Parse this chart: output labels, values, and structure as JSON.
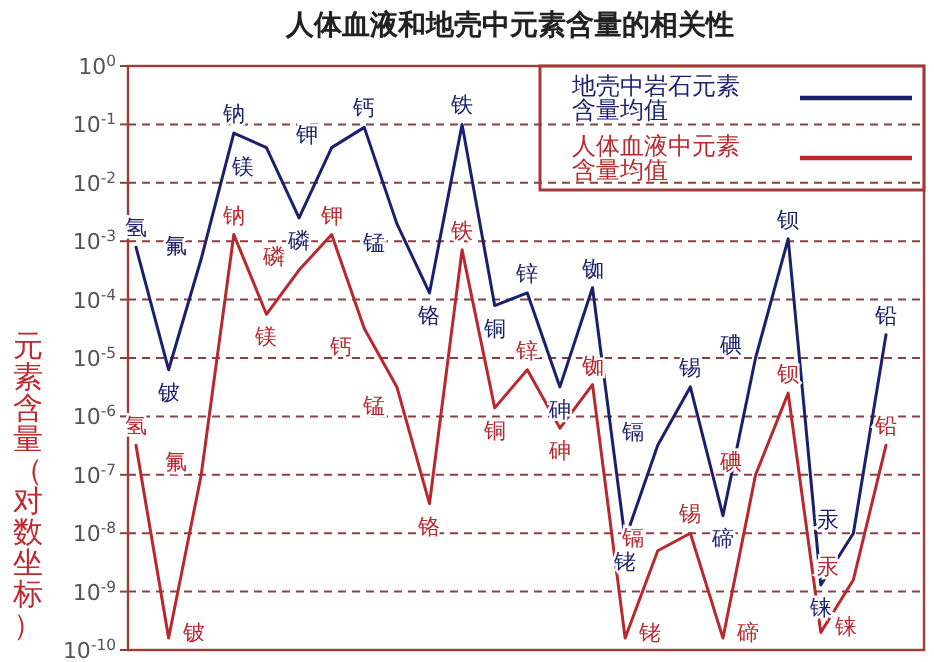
{
  "chart_data": {
    "type": "line",
    "title": "人体血液和地壳中元素含量的相关性",
    "ylabel": "元素含量（对数坐标）",
    "categories": [
      null,
      null,
      null,
      null,
      null,
      null,
      null,
      null,
      null,
      null,
      null,
      null,
      null,
      null,
      null,
      null,
      null,
      null,
      null,
      null,
      null,
      null,
      null,
      null
    ],
    "series": [
      {
        "name": "地壳中岩石元素含量均值",
        "color": "#1c1f6b",
        "values": [
          0.00079,
          6.3e-06,
          0.0005,
          0.071,
          0.04,
          0.0025,
          0.04,
          0.089,
          0.002,
          0.00013,
          0.1,
          7.9e-05,
          0.00013,
          3.2e-06,
          0.00016,
          7.9e-09,
          3.2e-07,
          3.2e-06,
          2e-08,
          1e-05,
          0.0011,
          1.3e-09,
          1e-08,
          2.5e-05
        ],
        "value_labels": [
          "氢",
          "铍",
          "氟",
          "钠",
          "镁",
          "磷",
          "钾",
          "钙",
          "锰",
          "铬",
          "铁",
          "铜",
          "锌",
          "砷",
          "铷",
          "铑",
          "镉",
          "锡",
          "碲",
          "碘",
          "钡",
          "铼",
          "汞",
          "铅"
        ]
      },
      {
        "name": "人体血液中元素含量均值",
        "color": "#b8282e",
        "values": [
          3.2e-07,
          1.6e-10,
          1e-07,
          0.0013,
          5.6e-05,
          0.00032,
          0.0013,
          3.2e-05,
          3.2e-06,
          3.2e-08,
          0.00071,
          1.4e-06,
          6.3e-06,
          6.3e-07,
          3.5e-06,
          1.6e-10,
          5e-09,
          1e-08,
          1.6e-10,
          1e-07,
          2.5e-06,
          2e-10,
          1.6e-09,
          3.2e-07
        ],
        "value_labels": [
          "氢",
          "铍",
          "氟",
          "钠",
          "镁",
          "磷",
          "钾",
          "钙",
          "锰",
          "铬",
          "铁",
          "铜",
          "锌",
          "砷",
          "铷",
          "铑",
          "镉",
          "锡",
          "碲",
          "碘",
          "钡",
          "铼",
          "汞",
          "铅"
        ]
      }
    ],
    "log": true,
    "ylim": [
      1e-10,
      1
    ],
    "yticks": [
      {
        "value": 1e-10,
        "label": "10$^{-10}$"
      },
      {
        "value": 1e-09,
        "label": "10$^{-9}$"
      },
      {
        "value": 1e-08,
        "label": "10$^{-8}$"
      },
      {
        "value": 1e-07,
        "label": "10$^{-7}$"
      },
      {
        "value": 1e-06,
        "label": "10$^{-6}$"
      },
      {
        "value": 1e-05,
        "label": "10$^{-5}$"
      },
      {
        "value": 0.0001,
        "label": "10$^{-4}$"
      },
      {
        "value": 0.001,
        "label": "10$^{-3}$"
      },
      {
        "value": 0.01,
        "label": "10$^{-2}$"
      },
      {
        "value": 0.1,
        "label": "10$^{-1}$"
      },
      {
        "value": 1,
        "label": "10$^{0}$"
      }
    ],
    "grid": "y",
    "legend": "top right",
    "tick_labels": "y"
  }
}
